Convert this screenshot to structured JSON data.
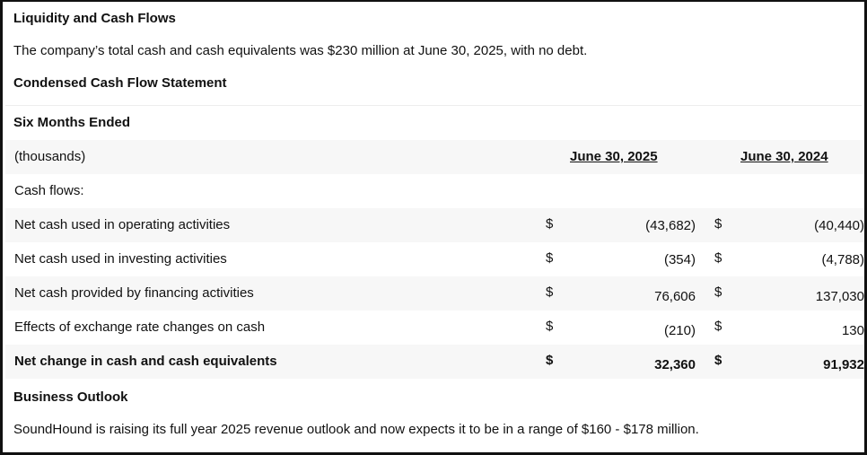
{
  "liquidity": {
    "heading": "Liquidity and Cash Flows",
    "text": "The company’s total cash and cash equivalents was $230 million at June 30, 2025, with no debt."
  },
  "cash_flow": {
    "heading": "Condensed Cash Flow Statement",
    "period_label": "Six Months Ended",
    "units_label": "(thousands)",
    "columns": [
      "June 30, 2025",
      "June 30, 2024"
    ],
    "section_label": "Cash flows:",
    "currency_symbol": "$",
    "rows": [
      {
        "label": "Net cash used in operating activities",
        "v2025": "(43,682)",
        "v2024": "(40,440)"
      },
      {
        "label": "Net cash used in investing activities",
        "v2025": "(354)",
        "v2024": "(4,788)"
      },
      {
        "label": "Net cash provided by financing activities",
        "v2025": "76,606",
        "v2024": "137,030"
      },
      {
        "label": "Effects of exchange rate changes on cash",
        "v2025": "(210)",
        "v2024": "130"
      }
    ],
    "total": {
      "label": "Net change in cash and cash equivalents",
      "v2025": "32,360",
      "v2024": "91,932"
    }
  },
  "outlook": {
    "heading": "Business Outlook",
    "text": "SoundHound is raising its full year 2025 revenue outlook and now expects it to be in a range of $160 - $178 million."
  }
}
